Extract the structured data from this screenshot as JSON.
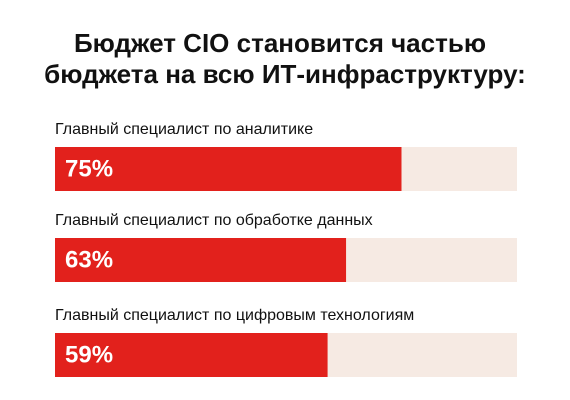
{
  "chart_data": {
    "type": "bar",
    "orientation": "horizontal",
    "title": [
      "Бюджет CIO становится частью",
      "бюджета на всю ИТ-инфраструктуру:"
    ],
    "categories": [
      "Главный специалист по аналитике",
      "Главный специалист по обработке данных",
      "Главный специалист по цифровым технологиям"
    ],
    "values": [
      75,
      63,
      59
    ],
    "value_labels": [
      "75%",
      "63%",
      "59%"
    ],
    "color": "#e2211c",
    "track_color": "#f6eae3",
    "xlim": [
      0,
      100
    ]
  }
}
